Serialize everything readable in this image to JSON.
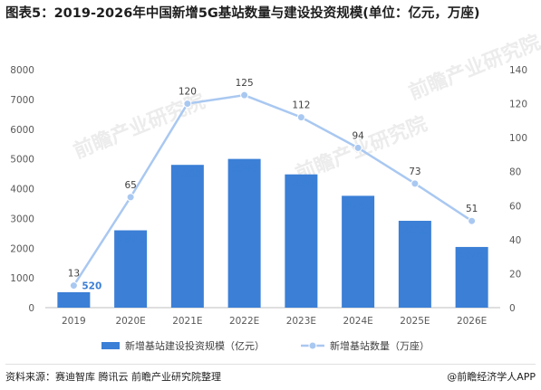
{
  "page": {
    "title": "图表5：2019-2026年中国新增5G基站数量与建设投资规模(单位：亿元，万座)",
    "source": "资料来源：赛迪智库 腾讯云 前瞻产业研究院整理",
    "publisher": "@前瞻经济学人APP",
    "watermark": "前瞻产业研究院"
  },
  "colors": {
    "bar": "#3b7fd6",
    "line": "#a9c8f1",
    "bar_label": "#3b7fd6",
    "point_label": "#404040",
    "axis_text": "#595959",
    "grid": "#e0e0e0"
  },
  "chart_data": {
    "type": "bar",
    "title": "图表5：2019-2026年中国新增5G基站数量与建设投资规模(单位：亿元，万座)",
    "categories": [
      "2019",
      "2020E",
      "2021E",
      "2022E",
      "2023E",
      "2024E",
      "2025E",
      "2026E"
    ],
    "series": [
      {
        "name": "新增基站建设投资规模（亿元）",
        "type": "bar",
        "axis": "left",
        "values": [
          520,
          2600,
          4800,
          5000,
          4480,
          3760,
          2920,
          2040
        ]
      },
      {
        "name": "新增基站数量（万座）",
        "type": "line",
        "axis": "right",
        "values": [
          13,
          65,
          120,
          125,
          112,
          94,
          73,
          51
        ]
      }
    ],
    "y_left": {
      "ylim": [
        0,
        8000
      ],
      "ticks": [
        0,
        1000,
        2000,
        3000,
        4000,
        5000,
        6000,
        7000,
        8000
      ]
    },
    "y_right": {
      "ylim": [
        0,
        140
      ],
      "ticks": [
        0,
        20,
        40,
        60,
        80,
        100,
        120,
        140
      ]
    },
    "grid": false,
    "legend_position": "bottom"
  }
}
